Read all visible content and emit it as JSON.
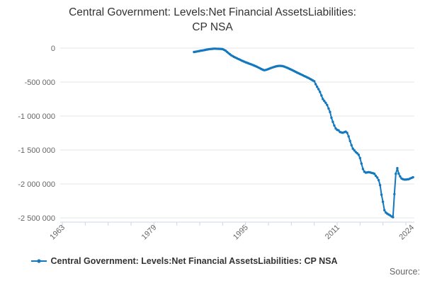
{
  "title": {
    "lines": [
      "Central Government: Levels:Net Financial AssetsLiabilities:",
      "CP NSA"
    ]
  },
  "legend": {
    "label": "Central Government: Levels:Net Financial AssetsLiabilities: CP NSA"
  },
  "source_label": "Source:",
  "colors": {
    "series": "#1478be",
    "grid": "#e6e6e6",
    "axis": "#ccd6eb",
    "tick_label": "#666666",
    "title": "#333333"
  },
  "chart_data": {
    "type": "line",
    "title": "Central Government: Levels:Net Financial AssetsLiabilities: CP NSA",
    "xlabel": "",
    "ylabel": "",
    "x_unit": "year (quarterly points)",
    "x_start": 1986,
    "x_interval": 0.25,
    "xlim": [
      1962.6,
      2024.5
    ],
    "ylim": [
      -2560000,
      0
    ],
    "grid": "horizontal",
    "legend_position": "bottom",
    "yticks": [
      {
        "value": 0,
        "label": "0"
      },
      {
        "value": -500000,
        "label": "-500 000"
      },
      {
        "value": -1000000,
        "label": "-1 000 000"
      },
      {
        "value": -1500000,
        "label": "-1 500 000"
      },
      {
        "value": -2000000,
        "label": "-2 000 000"
      },
      {
        "value": -2500000,
        "label": "-2 500 000"
      }
    ],
    "xticks": [
      1963,
      1967,
      1971,
      1975,
      1979,
      1983,
      1987,
      1991,
      1995,
      1999,
      2003,
      2007,
      2011,
      2015,
      2019,
      2023
    ],
    "xlabels": [
      {
        "year": 1963,
        "text": "1963"
      },
      {
        "year": 1979,
        "text": "1979"
      },
      {
        "year": 1995,
        "text": "1995"
      },
      {
        "year": 2011,
        "text": "2011"
      },
      {
        "year": 2024,
        "text": "2024"
      }
    ],
    "series_name": "Central Government: Levels:Net Financial AssetsLiabilities: CP NSA",
    "values": [
      -57000,
      -54000,
      -50000,
      -46000,
      -42000,
      -38000,
      -34000,
      -30000,
      -26000,
      -22000,
      -18000,
      -15000,
      -12000,
      -10000,
      -8000,
      -8000,
      -9000,
      -10000,
      -11000,
      -13000,
      -16000,
      -25000,
      -38000,
      -55000,
      -72000,
      -90000,
      -105000,
      -118000,
      -130000,
      -140000,
      -150000,
      -160000,
      -170000,
      -180000,
      -190000,
      -199000,
      -208000,
      -216000,
      -224000,
      -232000,
      -240000,
      -248000,
      -257000,
      -266000,
      -275000,
      -285000,
      -296000,
      -308000,
      -318000,
      -325000,
      -322000,
      -316000,
      -308000,
      -299000,
      -291000,
      -284000,
      -277000,
      -271000,
      -266000,
      -262000,
      -261000,
      -262000,
      -266000,
      -272000,
      -280000,
      -289000,
      -298000,
      -308000,
      -318000,
      -328000,
      -339000,
      -350000,
      -360000,
      -370000,
      -380000,
      -390000,
      -400000,
      -410000,
      -420000,
      -430000,
      -440000,
      -452000,
      -464000,
      -476000,
      -488000,
      -532000,
      -570000,
      -605000,
      -645000,
      -698000,
      -750000,
      -778000,
      -805000,
      -838000,
      -890000,
      -940000,
      -1025000,
      -1085000,
      -1140000,
      -1183000,
      -1204000,
      -1210000,
      -1235000,
      -1242000,
      -1246000,
      -1238000,
      -1230000,
      -1248000,
      -1300000,
      -1368000,
      -1430000,
      -1480000,
      -1505000,
      -1530000,
      -1548000,
      -1570000,
      -1620000,
      -1700000,
      -1780000,
      -1820000,
      -1833000,
      -1830000,
      -1826000,
      -1830000,
      -1836000,
      -1842000,
      -1850000,
      -1880000,
      -1905000,
      -1945000,
      -2018000,
      -2158000,
      -2263000,
      -2386000,
      -2421000,
      -2438000,
      -2450000,
      -2462000,
      -2478000,
      -2490000,
      -2150000,
      -1850000,
      -1768000,
      -1848000,
      -1890000,
      -1920000,
      -1930000,
      -1935000,
      -1935000,
      -1932000,
      -1930000,
      -1920000,
      -1910000,
      -1902000
    ]
  }
}
